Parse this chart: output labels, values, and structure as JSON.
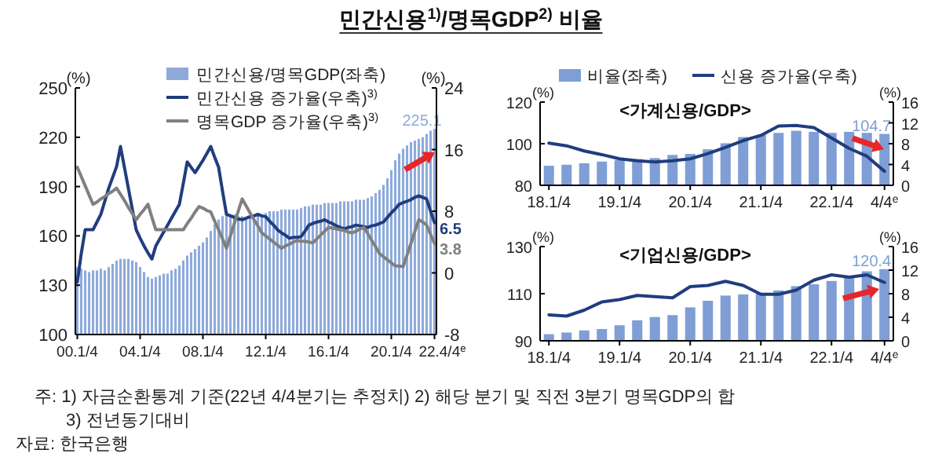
{
  "chart_data": [
    {
      "type": "bar",
      "title": "민간신용$^{1)}$/명목GDP$^{2)}$ 비율",
      "ylabel": "(%)",
      "y2label": "(%)",
      "categories": [
        "00.1/4",
        null,
        null,
        null,
        null,
        null,
        null,
        null,
        null,
        null,
        null,
        null,
        null,
        null,
        null,
        null,
        "04.1/4",
        null,
        null,
        null,
        null,
        null,
        null,
        null,
        null,
        null,
        null,
        null,
        null,
        null,
        null,
        null,
        "08.1/4",
        null,
        null,
        null,
        null,
        null,
        null,
        null,
        null,
        null,
        null,
        null,
        null,
        null,
        null,
        null,
        "12.1/4",
        null,
        null,
        null,
        null,
        null,
        null,
        null,
        null,
        null,
        null,
        null,
        null,
        null,
        null,
        null,
        "16.1/4",
        null,
        null,
        null,
        null,
        null,
        null,
        null,
        null,
        null,
        null,
        null,
        null,
        null,
        null,
        null,
        "20.1/4",
        null,
        null,
        null,
        null,
        null,
        null,
        null,
        null,
        null,
        null,
        "22.4/4$^{e}$"
      ],
      "series": [
        {
          "name": "민간신용/명목GDP(좌축)",
          "color": "#8eaadb",
          "values": [
            141,
            140,
            139,
            138,
            139,
            139,
            140,
            139,
            141,
            143,
            145,
            146,
            146,
            146,
            145,
            144,
            141,
            138,
            135,
            134,
            135,
            136,
            137,
            137,
            139,
            140,
            142,
            145,
            148,
            150,
            152,
            154,
            156,
            159,
            163,
            167,
            170,
            172,
            173,
            173,
            173,
            172,
            172,
            171,
            172,
            172,
            173,
            173,
            174,
            175,
            175,
            175,
            176,
            176,
            176,
            176,
            176,
            177,
            178,
            178,
            179,
            179,
            179,
            180,
            180,
            180,
            180,
            181,
            181,
            181,
            181,
            182,
            182,
            182,
            183,
            184,
            186,
            188,
            191,
            195,
            200,
            206,
            210,
            213,
            215,
            217,
            218,
            219,
            220,
            222,
            224,
            225.1
          ],
          "value_labels": [
            null,
            null,
            null,
            null,
            null,
            null,
            null,
            null,
            null,
            null,
            null,
            null,
            null,
            null,
            null,
            null,
            null,
            null,
            null,
            null,
            null,
            null,
            null,
            null,
            null,
            null,
            null,
            null,
            null,
            null,
            null,
            null,
            null,
            null,
            null,
            null,
            null,
            null,
            null,
            null,
            null,
            null,
            null,
            null,
            null,
            null,
            null,
            null,
            null,
            null,
            null,
            null,
            null,
            null,
            null,
            null,
            null,
            null,
            null,
            null,
            null,
            null,
            null,
            null,
            null,
            null,
            null,
            null,
            null,
            null,
            null,
            null,
            null,
            null,
            null,
            null,
            null,
            null,
            null,
            null,
            null,
            null,
            null,
            null,
            null,
            null,
            null,
            null,
            null,
            null,
            null,
            "225.1"
          ]
        },
        {
          "name": "민간신용 증가율(우축)$^{3)}$",
          "type": "line",
          "axis": "y2",
          "color": "#203d7e",
          "values": [
            -1.2,
            2.5,
            5.6,
            5.6,
            5.6,
            6.6,
            7.6,
            9.3,
            11,
            12.4,
            13.8,
            16.4,
            13.7,
            11,
            8.3,
            5.6,
            4.5,
            3.5,
            2.6,
            1.8,
            3.5,
            4.4,
            5.3,
            6.2,
            7.1,
            8,
            8.9,
            11.6,
            14.4,
            13.7,
            13,
            13.8,
            14.6,
            15.5,
            16.4,
            15,
            13.7,
            10.6,
            7.6,
            7.4,
            7.2,
            7,
            6.9,
            7.1,
            7.3,
            7.4,
            7.6,
            7.4,
            7.3,
            6.7,
            6.2,
            5.6,
            5.2,
            4.9,
            4.5,
            4.6,
            4.6,
            4.7,
            5.4,
            6.2,
            6.4,
            6.6,
            6.7,
            6.9,
            6.6,
            6.4,
            6.1,
            5.9,
            5.7,
            5.9,
            6,
            6.2,
            6.1,
            6,
            5.9,
            6.1,
            6.2,
            6.4,
            6.6,
            7.2,
            7.8,
            8.3,
            8.9,
            9.1,
            9.3,
            9.5,
            9.8,
            10,
            9.8,
            9.6,
            8,
            6.5
          ],
          "value_labels": [
            null,
            null,
            null,
            null,
            null,
            null,
            null,
            null,
            null,
            null,
            null,
            null,
            null,
            null,
            null,
            null,
            null,
            null,
            null,
            null,
            null,
            null,
            null,
            null,
            null,
            null,
            null,
            null,
            null,
            null,
            null,
            null,
            null,
            null,
            null,
            null,
            null,
            null,
            null,
            null,
            null,
            null,
            null,
            null,
            null,
            null,
            null,
            null,
            null,
            null,
            null,
            null,
            null,
            null,
            null,
            null,
            null,
            null,
            null,
            null,
            null,
            null,
            null,
            null,
            null,
            null,
            null,
            null,
            null,
            null,
            null,
            null,
            null,
            null,
            null,
            null,
            null,
            null,
            null,
            null,
            null,
            null,
            null,
            null,
            null,
            null,
            null,
            null,
            null,
            null,
            null,
            "6.5"
          ]
        },
        {
          "name": "명목GDP 증가율(우축)$^{3)}$",
          "type": "line",
          "axis": "y2",
          "color": "#808080",
          "values": [
            13.7,
            12.5,
            11.3,
            10.1,
            8.9,
            9.2,
            9.6,
            9.9,
            10.3,
            10.6,
            11,
            10.2,
            9.4,
            8.5,
            7.7,
            6.9,
            7.6,
            8.2,
            8.9,
            7.2,
            5.6,
            5.6,
            5.6,
            5.6,
            5.6,
            5.6,
            5.6,
            5.6,
            6.4,
            7.1,
            7.9,
            8.6,
            8.4,
            8.1,
            7.9,
            6.7,
            5.6,
            4.4,
            3.2,
            4.8,
            6.4,
            8,
            9.6,
            8.7,
            7.8,
            6.9,
            6.1,
            5.2,
            4.8,
            4.4,
            4,
            3.6,
            3.2,
            3.5,
            3.7,
            4,
            4.2,
            4.1,
            4.1,
            4,
            3.9,
            4.4,
            4.9,
            5.4,
            5.9,
            5.8,
            5.7,
            5.6,
            5.5,
            5.3,
            5.2,
            5.4,
            5.7,
            5.9,
            5.1,
            4.2,
            3.4,
            2.5,
            2.1,
            1.7,
            1.3,
            0.9,
            0.9,
            0.8,
            2.3,
            3.8,
            5.4,
            6.9,
            6.6,
            6.2,
            5,
            3.8
          ],
          "value_labels": [
            null,
            null,
            null,
            null,
            null,
            null,
            null,
            null,
            null,
            null,
            null,
            null,
            null,
            null,
            null,
            null,
            null,
            null,
            null,
            null,
            null,
            null,
            null,
            null,
            null,
            null,
            null,
            null,
            null,
            null,
            null,
            null,
            null,
            null,
            null,
            null,
            null,
            null,
            null,
            null,
            null,
            null,
            null,
            null,
            null,
            null,
            null,
            null,
            null,
            null,
            null,
            null,
            null,
            null,
            null,
            null,
            null,
            null,
            null,
            null,
            null,
            null,
            null,
            null,
            null,
            null,
            null,
            null,
            null,
            null,
            null,
            null,
            null,
            null,
            null,
            null,
            null,
            null,
            null,
            null,
            null,
            null,
            null,
            null,
            null,
            null,
            null,
            null,
            null,
            null,
            null,
            "3.8"
          ]
        }
      ],
      "ylim": [
        100,
        250
      ],
      "yticks": [
        100,
        130,
        160,
        190,
        220,
        250
      ],
      "y2lim": [
        -8,
        24
      ],
      "y2ticks": [
        -8,
        0,
        8,
        16,
        24
      ],
      "legend": "top",
      "annotations": [
        "주: 1) 자금순환통계 기준(22년 4/4분기는 추정치)   2) 해당 분기 및 직전 3분기 명목GDP의 합",
        "3) 전년동기대비",
        "자료: 한국은행"
      ]
    },
    {
      "type": "bar",
      "title": "<가계신용/GDP>",
      "ylabel": "(%)",
      "y2label": "(%)",
      "categories": [
        "18.1/4",
        null,
        null,
        null,
        "19.1/4",
        null,
        null,
        null,
        "20.1/4",
        null,
        null,
        null,
        "21.1/4",
        null,
        null,
        null,
        "22.1/4",
        null,
        null,
        "4/4$^{e}$"
      ],
      "series": [
        {
          "name": "비율(좌축)",
          "color": "#7f9ed6",
          "values": [
            89.4,
            89.9,
            90.6,
            91.4,
            92.1,
            92.6,
            93.1,
            94.6,
            95.1,
            97.3,
            100.2,
            103.2,
            104.2,
            105.2,
            106.2,
            105.7,
            105.2,
            105.7,
            105.2,
            104.7
          ],
          "value_labels": [
            null,
            null,
            null,
            null,
            null,
            null,
            null,
            null,
            null,
            null,
            null,
            null,
            null,
            null,
            null,
            null,
            null,
            null,
            null,
            "104.7"
          ]
        },
        {
          "name": "신용 증가율(우축)",
          "type": "line",
          "axis": "y2",
          "color": "#203d7e",
          "values": [
            8.1,
            7.6,
            6.6,
            5.9,
            5.1,
            4.7,
            4.5,
            4.7,
            5.1,
            6.1,
            7.3,
            8.6,
            9.6,
            11.4,
            11.5,
            11.1,
            9.1,
            7.1,
            5.6,
            2.7
          ]
        }
      ],
      "ylim": [
        80,
        120
      ],
      "yticks": [
        80,
        100,
        120
      ],
      "y2lim": [
        0,
        16
      ],
      "y2ticks": [
        0,
        4,
        8,
        12,
        16
      ],
      "legend": "top"
    },
    {
      "type": "bar",
      "title": "<기업신용/GDP>",
      "ylabel": "(%)",
      "y2label": "(%)",
      "categories": [
        "18.1/4",
        null,
        null,
        null,
        "19.1/4",
        null,
        null,
        null,
        "20.1/4",
        null,
        null,
        null,
        "21.1/4",
        null,
        null,
        null,
        "22.1/4",
        null,
        null,
        "4/4$^{e}$"
      ],
      "series": [
        {
          "color": "#7f9ed6",
          "values": [
            92.8,
            93.5,
            94.4,
            95,
            96.6,
            98.7,
            100.1,
            100.9,
            104.2,
            107,
            109.2,
            109.7,
            110.3,
            111.4,
            113.2,
            114,
            115.4,
            117.1,
            119.5,
            120.4
          ],
          "value_labels": [
            null,
            null,
            null,
            null,
            null,
            null,
            null,
            null,
            null,
            null,
            null,
            null,
            null,
            null,
            null,
            null,
            null,
            null,
            null,
            "120.4"
          ]
        },
        {
          "type": "line",
          "axis": "y2",
          "color": "#203d7e",
          "values": [
            4.4,
            4.2,
            5.2,
            6.6,
            7,
            7.7,
            7.5,
            7.3,
            9.2,
            9.4,
            10.1,
            9.4,
            7.9,
            7.9,
            8.6,
            10.3,
            11.2,
            10.8,
            11.2,
            9.9
          ]
        }
      ],
      "ylim": [
        90,
        130
      ],
      "yticks": [
        90,
        110,
        130
      ],
      "y2lim": [
        0,
        16
      ],
      "y2ticks": [
        0,
        4,
        8,
        12,
        16
      ]
    }
  ]
}
